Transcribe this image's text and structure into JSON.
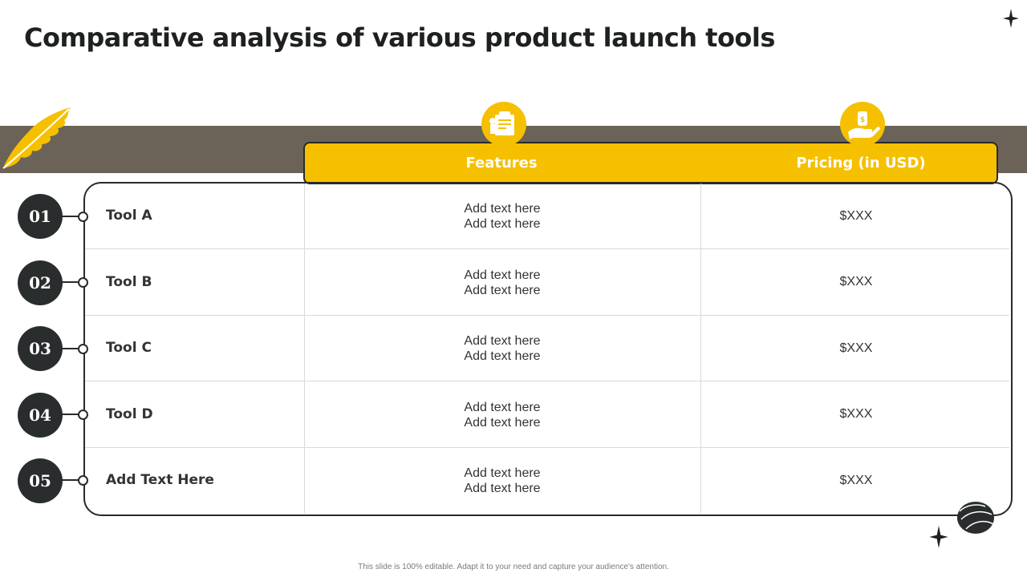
{
  "title": "Comparative analysis of various product launch tools",
  "columns": {
    "features": {
      "label": "Features",
      "icon": "clipboard-icon"
    },
    "pricing": {
      "label": "Pricing (in USD)",
      "icon": "hand-money-icon"
    }
  },
  "rows": [
    {
      "number": "01",
      "name": "Tool A",
      "features_line1": "Add text here",
      "features_line2": "Add text here",
      "price": "$XXX"
    },
    {
      "number": "02",
      "name": "Tool B",
      "features_line1": "Add text here",
      "features_line2": "Add text here",
      "price": "$XXX"
    },
    {
      "number": "03",
      "name": "Tool C",
      "features_line1": "Add text here",
      "features_line2": "Add text here",
      "price": "$XXX"
    },
    {
      "number": "04",
      "name": "Tool D",
      "features_line1": "Add text here",
      "features_line2": "Add text here",
      "price": "$XXX"
    },
    {
      "number": "05",
      "name": "Add Text Here",
      "features_line1": "Add text here",
      "features_line2": "Add text here",
      "price": "$XXX"
    }
  ],
  "footer": "This slide is 100% editable.  Adapt it to your need and capture your audience's attention.",
  "decorations": [
    "sparkle-icon",
    "leaf-icon",
    "seed-icon"
  ],
  "colors": {
    "accent": "#f5c000",
    "dark": "#2a2d2d",
    "band": "#6b6258"
  }
}
